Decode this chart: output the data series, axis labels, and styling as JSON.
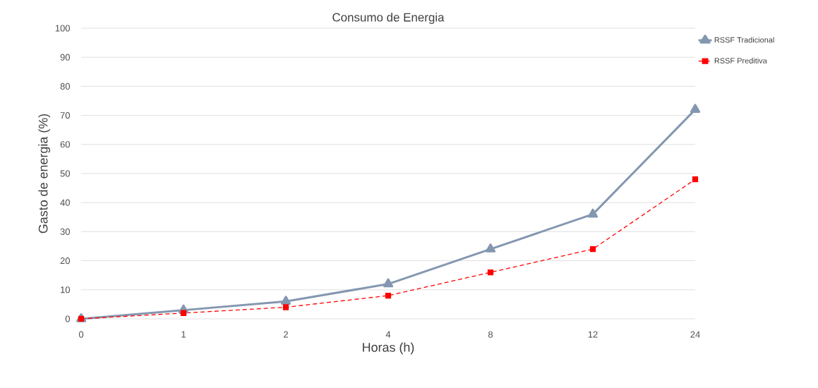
{
  "chart_data": {
    "type": "line",
    "title": "Consumo de Energia",
    "xlabel": "Horas (h)",
    "ylabel": "Gasto de energia (%)",
    "categories": [
      "0",
      "1",
      "2",
      "4",
      "8",
      "12",
      "24"
    ],
    "series": [
      {
        "name": "RSSF Tradicional",
        "color": "#8497b0",
        "values": [
          0,
          3,
          6,
          12,
          24,
          36,
          72
        ],
        "marker": "triangle",
        "line_style": "solid"
      },
      {
        "name": "RSSF Preditiva",
        "color": "#ff0000",
        "values": [
          0,
          2,
          4,
          8,
          16,
          24,
          48
        ],
        "marker": "square",
        "line_style": "dashed"
      }
    ],
    "ylim": [
      0,
      100
    ],
    "yticks": [
      0,
      10,
      20,
      30,
      40,
      50,
      60,
      70,
      80,
      90,
      100
    ],
    "grid": "y",
    "legend": "right"
  }
}
